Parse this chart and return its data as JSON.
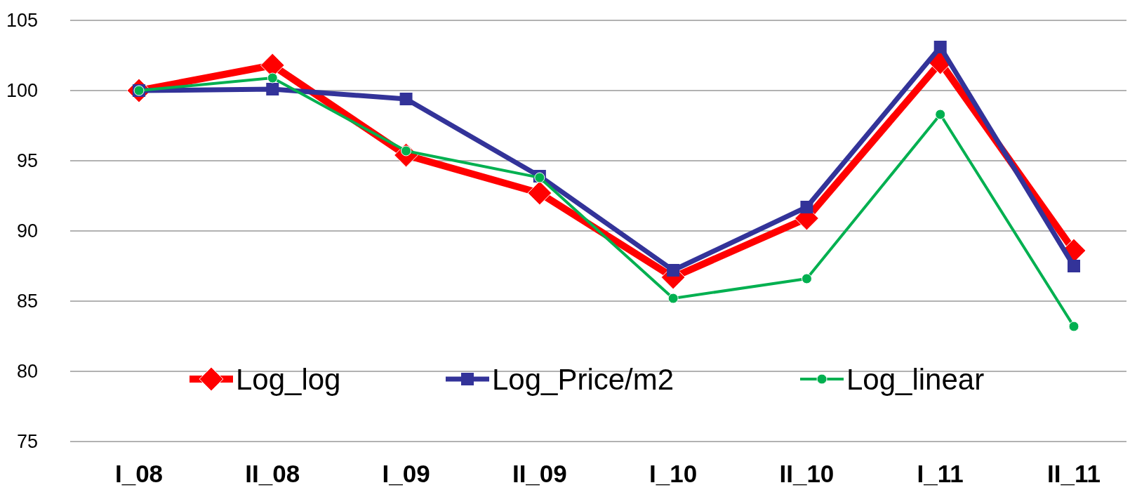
{
  "chart_data": {
    "type": "line",
    "categories": [
      "I_08",
      "II_08",
      "I_09",
      "II_09",
      "I_10",
      "II_10",
      "I_11",
      "II_11"
    ],
    "series": [
      {
        "name": "Log_log",
        "color": "#ff0000",
        "marker": "diamond",
        "values": [
          100,
          101.8,
          95.4,
          92.7,
          86.7,
          90.9,
          102.0,
          88.6
        ]
      },
      {
        "name": "Log_Price/m2",
        "color": "#333399",
        "marker": "square",
        "values": [
          100,
          100.1,
          99.4,
          93.9,
          87.2,
          91.7,
          103.1,
          87.5
        ]
      },
      {
        "name": "Log_linear",
        "color": "#00b050",
        "marker": "circle",
        "values": [
          100,
          100.9,
          95.7,
          93.8,
          85.2,
          86.6,
          98.3,
          83.2
        ]
      }
    ],
    "ylim": [
      75,
      105
    ],
    "yticks": [
      75,
      80,
      85,
      90,
      95,
      100,
      105
    ],
    "grid": "y",
    "legend": "bottom"
  }
}
